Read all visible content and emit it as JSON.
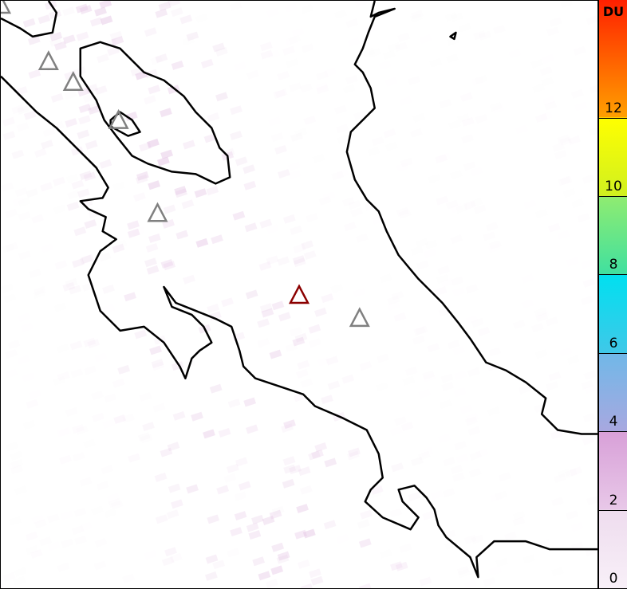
{
  "colorbar": {
    "unit": "DU",
    "ticks": [
      0,
      2,
      4,
      6,
      8,
      10,
      12
    ],
    "tick_labels": [
      "0",
      "2",
      "4",
      "6",
      "8",
      "10",
      "12"
    ],
    "range": [
      0,
      15
    ],
    "bands": [
      {
        "from": 0,
        "to": 2,
        "colors": [
          "#f8f0f8",
          "#eedcee"
        ]
      },
      {
        "from": 2,
        "to": 4,
        "colors": [
          "#e8c8e8",
          "#d8a0d8"
        ]
      },
      {
        "from": 4,
        "to": 6,
        "colors": [
          "#a8a8e0",
          "#70b8e8"
        ]
      },
      {
        "from": 6,
        "to": 8,
        "colors": [
          "#40c8e8",
          "#00e0f0"
        ]
      },
      {
        "from": 8,
        "to": 10,
        "colors": [
          "#40e0a0",
          "#90ec70"
        ]
      },
      {
        "from": 10,
        "to": 12,
        "colors": [
          "#d0f020",
          "#ffff00"
        ]
      },
      {
        "from": 12,
        "to": 15,
        "colors": [
          "#ffa000",
          "#ff2000"
        ]
      }
    ]
  },
  "volcanoes": [
    {
      "lon_idx": 0,
      "color": "#808080"
    },
    {
      "lon_idx": 1,
      "color": "#808080"
    },
    {
      "lon_idx": 2,
      "color": "#808080"
    },
    {
      "lon_idx": 3,
      "color": "#808080"
    },
    {
      "lon_idx": 4,
      "color": "#808080"
    },
    {
      "lon_idx": 5,
      "color": "#808080"
    },
    {
      "lon_idx": 6,
      "color": "#8b0000",
      "highlighted": true
    }
  ],
  "colors": {
    "coastline": "#000000",
    "pixel": "#e4c4e4"
  }
}
